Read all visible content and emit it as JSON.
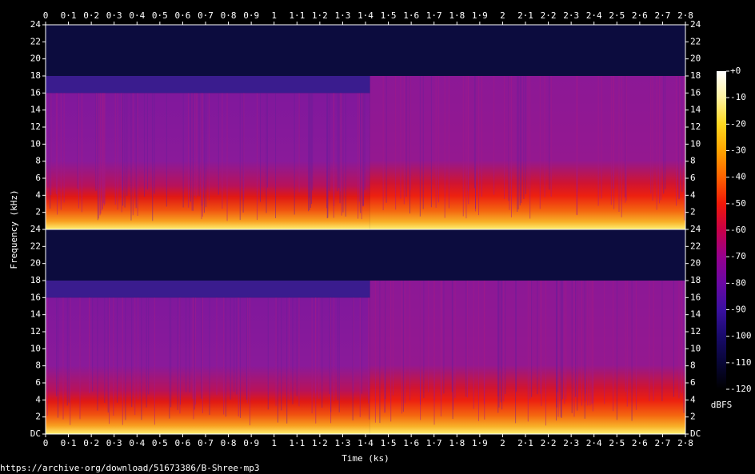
{
  "chart_data": [
    {
      "type": "spectrogram",
      "ylabel": "Frequency (kHz)",
      "xlim": [
        0,
        2.8
      ],
      "ylim": [
        0,
        24
      ],
      "xticks": [
        0,
        {
          "value": 0.1,
          "label": "0·1"
        },
        {
          "value": 0.2,
          "label": "0·2"
        },
        {
          "value": 0.3,
          "label": "0·3"
        },
        {
          "value": 0.4,
          "label": "0·4"
        },
        {
          "value": 0.5,
          "label": "0·5"
        },
        {
          "value": 0.6,
          "label": "0·6"
        },
        {
          "value": 0.7,
          "label": "0·7"
        },
        {
          "value": 0.8,
          "label": "0·8"
        },
        {
          "value": 0.9,
          "label": "0·9"
        },
        1,
        {
          "value": 1.1,
          "label": "1·1"
        },
        {
          "value": 1.2,
          "label": "1·2"
        },
        {
          "value": 1.3,
          "label": "1·3"
        },
        {
          "value": 1.4,
          "label": "1·4"
        },
        {
          "value": 1.5,
          "label": "1·5"
        },
        {
          "value": 1.6,
          "label": "1·6"
        },
        {
          "value": 1.7,
          "label": "1·7"
        },
        {
          "value": 1.8,
          "label": "1·8"
        },
        {
          "value": 1.9,
          "label": "1·9"
        },
        2,
        {
          "value": 2.1,
          "label": "2·1"
        },
        {
          "value": 2.2,
          "label": "2·2"
        },
        {
          "value": 2.3,
          "label": "2·3"
        },
        {
          "value": 2.4,
          "label": "2·4"
        },
        {
          "value": 2.5,
          "label": "2·5"
        },
        {
          "value": 2.6,
          "label": "2·6"
        },
        {
          "value": 2.7,
          "label": "2·7"
        },
        {
          "value": 2.8,
          "label": "2·8"
        }
      ],
      "yticks": [
        2,
        4,
        6,
        8,
        10,
        12,
        14,
        16,
        18,
        20,
        22,
        24
      ],
      "colorbar": {
        "title": "dBFS",
        "lim": [
          -120,
          0
        ],
        "ticks": [
          {
            "value": 0,
            "label": "+0"
          },
          -10,
          -20,
          -30,
          -40,
          -50,
          -60,
          -70,
          -80,
          -90,
          -100,
          -110,
          -120
        ],
        "colormap": [
          "#ffffff",
          "#fff3a0",
          "#ffd820",
          "#ffa400",
          "#ff6200",
          "#f01808",
          "#c80048",
          "#96008e",
          "#6a08a4",
          "#3a10a0",
          "#180a6a",
          "#080636",
          "#000000"
        ]
      }
    },
    {
      "type": "spectrogram",
      "xlabel": "Time (ks)",
      "xlim": [
        0,
        2.8
      ],
      "ylim": [
        0,
        24
      ],
      "xticks": [
        0,
        {
          "value": 0.1,
          "label": "0·1"
        },
        {
          "value": 0.2,
          "label": "0·2"
        },
        {
          "value": 0.3,
          "label": "0·3"
        },
        {
          "value": 0.4,
          "label": "0·4"
        },
        {
          "value": 0.5,
          "label": "0·5"
        },
        {
          "value": 0.6,
          "label": "0·6"
        },
        {
          "value": 0.7,
          "label": "0·7"
        },
        {
          "value": 0.8,
          "label": "0·8"
        },
        {
          "value": 0.9,
          "label": "0·9"
        },
        1,
        {
          "value": 1.1,
          "label": "1·1"
        },
        {
          "value": 1.2,
          "label": "1·2"
        },
        {
          "value": 1.3,
          "label": "1·3"
        },
        {
          "value": 1.4,
          "label": "1·4"
        },
        {
          "value": 1.5,
          "label": "1·5"
        },
        {
          "value": 1.6,
          "label": "1·6"
        },
        {
          "value": 1.7,
          "label": "1·7"
        },
        {
          "value": 1.8,
          "label": "1·8"
        },
        {
          "value": 1.9,
          "label": "1·9"
        },
        2,
        {
          "value": 2.1,
          "label": "2·1"
        },
        {
          "value": 2.2,
          "label": "2·2"
        },
        {
          "value": 2.3,
          "label": "2·3"
        },
        {
          "value": 2.4,
          "label": "2·4"
        },
        {
          "value": 2.5,
          "label": "2·5"
        },
        {
          "value": 2.6,
          "label": "2·6"
        },
        {
          "value": 2.7,
          "label": "2·7"
        },
        {
          "value": 2.8,
          "label": "2·8"
        }
      ],
      "yticks": [
        {
          "value": 0,
          "label": "DC"
        },
        2,
        4,
        6,
        8,
        10,
        12,
        14,
        16,
        18,
        20,
        22,
        24
      ]
    }
  ],
  "footer": "https://archive·org/download/51673386/B-Shree·mp3"
}
